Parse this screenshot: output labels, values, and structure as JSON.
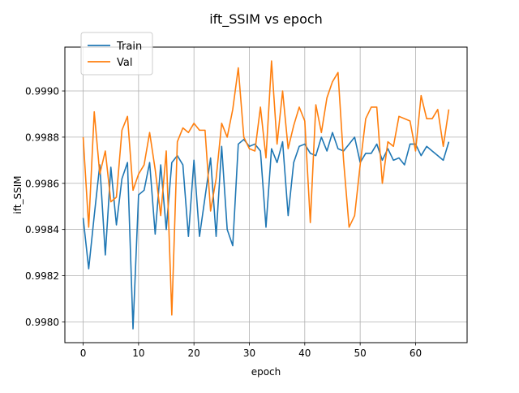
{
  "chart_data": {
    "type": "line",
    "title": "ift_SSIM vs epoch",
    "xlabel": "epoch",
    "ylabel": "ift_SSIM",
    "xlim": [
      -3.3,
      69.3
    ],
    "ylim": [
      0.99791,
      0.99919
    ],
    "grid": true,
    "legend_position": "upper left",
    "x_ticks": [
      0,
      10,
      20,
      30,
      40,
      50,
      60
    ],
    "y_ticks": [
      0.998,
      0.9982,
      0.9984,
      0.9986,
      0.9988,
      0.999
    ],
    "y_tick_labels": [
      "0.9980",
      "0.9982",
      "0.9984",
      "0.9986",
      "0.9988",
      "0.9990"
    ],
    "x": [
      0,
      1,
      2,
      3,
      4,
      5,
      6,
      7,
      8,
      9,
      10,
      11,
      12,
      13,
      14,
      15,
      16,
      17,
      18,
      19,
      20,
      21,
      22,
      23,
      24,
      25,
      26,
      27,
      28,
      29,
      30,
      31,
      32,
      33,
      34,
      35,
      36,
      37,
      38,
      39,
      40,
      41,
      42,
      43,
      44,
      45,
      46,
      47,
      48,
      49,
      50,
      51,
      52,
      53,
      54,
      55,
      56,
      57,
      58,
      59,
      60,
      61,
      62,
      63,
      64,
      65,
      66
    ],
    "series": [
      {
        "name": "Train",
        "color": "#1f77b4",
        "values": [
          0.99845,
          0.99823,
          0.99846,
          0.99868,
          0.99829,
          0.99867,
          0.99842,
          0.99862,
          0.99869,
          0.99797,
          0.99855,
          0.99857,
          0.99869,
          0.99838,
          0.99868,
          0.9984,
          0.99869,
          0.99872,
          0.99868,
          0.99837,
          0.9987,
          0.99837,
          0.99854,
          0.99871,
          0.99837,
          0.99876,
          0.9984,
          0.99833,
          0.99877,
          0.99879,
          0.99876,
          0.99877,
          0.99874,
          0.99841,
          0.99875,
          0.99869,
          0.99878,
          0.99846,
          0.99869,
          0.99876,
          0.99877,
          0.99873,
          0.99872,
          0.9988,
          0.99874,
          0.99882,
          0.99875,
          0.99874,
          0.99877,
          0.9988,
          0.99869,
          0.99873,
          0.99873,
          0.99877,
          0.9987,
          0.99875,
          0.9987,
          0.99871,
          0.99868,
          0.99877,
          0.99877,
          0.99872,
          0.99876,
          0.99874,
          0.99872,
          0.9987,
          0.99878
        ]
      },
      {
        "name": "Val",
        "color": "#ff7f0e",
        "values": [
          0.9988,
          0.99841,
          0.99891,
          0.99864,
          0.99874,
          0.99852,
          0.99854,
          0.99883,
          0.99889,
          0.99857,
          0.99864,
          0.99868,
          0.99882,
          0.99866,
          0.99846,
          0.99874,
          0.99803,
          0.99878,
          0.99884,
          0.99882,
          0.99886,
          0.99883,
          0.99883,
          0.99848,
          0.99862,
          0.99886,
          0.9988,
          0.99892,
          0.9991,
          0.9988,
          0.99875,
          0.99874,
          0.99893,
          0.99871,
          0.99913,
          0.99877,
          0.999,
          0.99875,
          0.99885,
          0.99893,
          0.99887,
          0.99843,
          0.99894,
          0.99882,
          0.99897,
          0.99904,
          0.99908,
          0.9987,
          0.99841,
          0.99846,
          0.99868,
          0.99888,
          0.99893,
          0.99893,
          0.9986,
          0.99878,
          0.99876,
          0.99889,
          0.99888,
          0.99887,
          0.99874,
          0.99898,
          0.99888,
          0.99888,
          0.99892,
          0.99876,
          0.99892
        ]
      }
    ]
  }
}
